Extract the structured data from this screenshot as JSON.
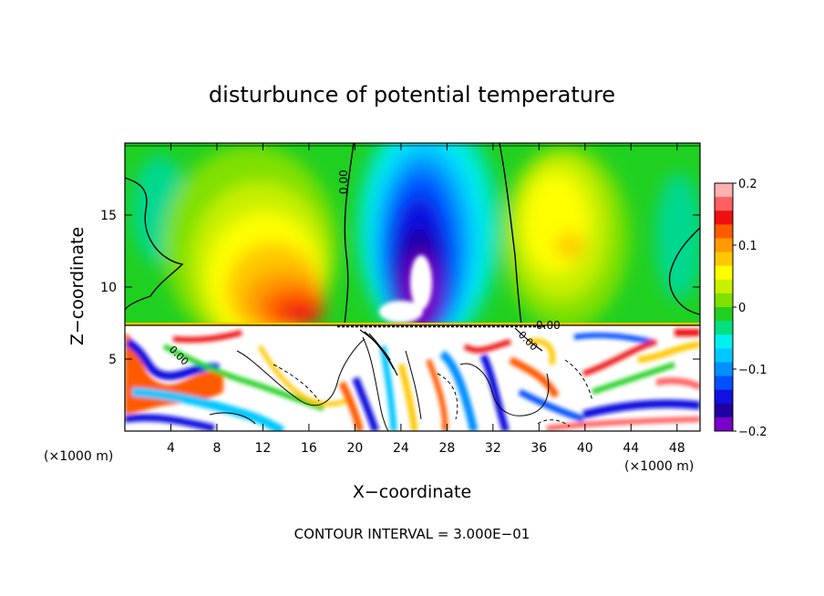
{
  "chart_data": {
    "type": "heatmap",
    "title": "disturbunce of potential temperature",
    "xlabel": "X−coordinate",
    "ylabel": "Z−coordinate",
    "x_unit_left": "(×1000 m)",
    "x_unit_right": "(×1000 m)",
    "footer": "CONTOUR INTERVAL = 3.000E−01",
    "xlim": [
      0,
      50
    ],
    "ylim": [
      0,
      20
    ],
    "x_ticks": [
      4,
      8,
      12,
      16,
      20,
      24,
      28,
      32,
      36,
      40,
      44,
      48
    ],
    "y_ticks": [
      5,
      10,
      15
    ],
    "colorbar": {
      "range": [
        -0.2,
        0.2
      ],
      "tick_values": [
        0.2,
        0.1,
        0,
        -0.1,
        -0.2
      ],
      "tick_labels": [
        "0.2",
        "0.1",
        "0",
        "−0.1",
        "−0.2"
      ],
      "colors": [
        "#ffb0b0",
        "#ff6060",
        "#ee1010",
        "#ff5a00",
        "#ff9a00",
        "#ffc800",
        "#ffff00",
        "#c8f000",
        "#80e000",
        "#20d020",
        "#00e080",
        "#00f0f0",
        "#00c8ff",
        "#0090ff",
        "#0050ff",
        "#1010e0",
        "#2000a0",
        "#7800c8"
      ]
    },
    "contour_labels": [
      "0.00",
      "0.00",
      "0.00",
      "0.00"
    ],
    "contour_interval": 0.3
  }
}
